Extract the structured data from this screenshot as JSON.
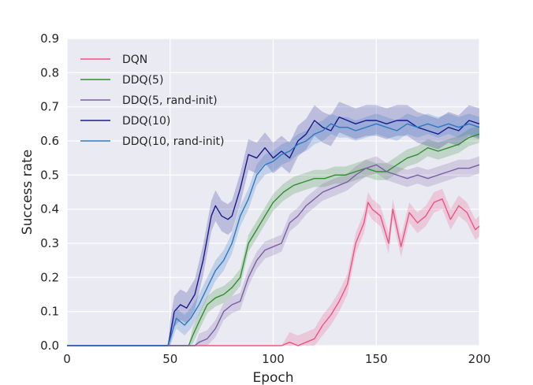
{
  "chart_data": {
    "type": "line",
    "xlabel": "Epoch",
    "ylabel": "Success rate",
    "xlim": [
      0,
      200
    ],
    "ylim": [
      0.0,
      0.9
    ],
    "xticks": [
      "0",
      "50",
      "100",
      "150",
      "200"
    ],
    "yticks": [
      "0.0",
      "0.1",
      "0.2",
      "0.3",
      "0.4",
      "0.5",
      "0.6",
      "0.7",
      "0.8",
      "0.9"
    ],
    "grid": true,
    "legend_position": "top-left",
    "series": [
      {
        "name": "DQN",
        "color": "#f0527f",
        "band_half_width": 0.03,
        "x": [
          0,
          100,
          104,
          108,
          112,
          116,
          120,
          124,
          128,
          132,
          136,
          140,
          144,
          146,
          148,
          152,
          156,
          158,
          162,
          166,
          170,
          174,
          178,
          182,
          186,
          190,
          194,
          198,
          200
        ],
        "y": [
          0,
          0,
          0.0,
          0.01,
          0.0,
          0.01,
          0.02,
          0.06,
          0.09,
          0.13,
          0.18,
          0.3,
          0.36,
          0.42,
          0.4,
          0.38,
          0.3,
          0.4,
          0.29,
          0.39,
          0.36,
          0.38,
          0.42,
          0.43,
          0.37,
          0.41,
          0.39,
          0.34,
          0.35
        ]
      },
      {
        "name": "DDQ(5)",
        "color": "#2f8f2f",
        "band_half_width": 0.025,
        "x": [
          0,
          59,
          61,
          64,
          68,
          72,
          76,
          80,
          84,
          88,
          92,
          96,
          100,
          105,
          110,
          115,
          120,
          125,
          130,
          135,
          140,
          145,
          150,
          155,
          160,
          165,
          170,
          175,
          180,
          185,
          190,
          195,
          200
        ],
        "y": [
          0,
          0,
          0.03,
          0.07,
          0.12,
          0.14,
          0.15,
          0.17,
          0.2,
          0.3,
          0.34,
          0.38,
          0.42,
          0.45,
          0.47,
          0.48,
          0.49,
          0.49,
          0.5,
          0.5,
          0.51,
          0.52,
          0.51,
          0.51,
          0.53,
          0.55,
          0.56,
          0.58,
          0.57,
          0.58,
          0.59,
          0.61,
          0.62
        ]
      },
      {
        "name": "DDQ(5, rand-init)",
        "color": "#7a5fa5",
        "band_half_width": 0.025,
        "x": [
          0,
          62,
          64,
          68,
          72,
          76,
          80,
          84,
          88,
          92,
          96,
          100,
          104,
          108,
          112,
          116,
          120,
          124,
          128,
          132,
          136,
          140,
          145,
          150,
          155,
          160,
          165,
          170,
          175,
          180,
          185,
          190,
          195,
          200
        ],
        "y": [
          0,
          0,
          0.01,
          0.02,
          0.05,
          0.1,
          0.12,
          0.13,
          0.2,
          0.25,
          0.28,
          0.29,
          0.3,
          0.36,
          0.38,
          0.41,
          0.43,
          0.45,
          0.46,
          0.47,
          0.48,
          0.5,
          0.52,
          0.53,
          0.51,
          0.5,
          0.49,
          0.5,
          0.49,
          0.5,
          0.51,
          0.52,
          0.52,
          0.53
        ]
      },
      {
        "name": "DDQ(10)",
        "color": "#1a1a90",
        "band_half_width": 0.045,
        "x": [
          0,
          49,
          50,
          52,
          55,
          58,
          62,
          66,
          70,
          72,
          75,
          78,
          80,
          84,
          88,
          92,
          96,
          100,
          104,
          108,
          112,
          116,
          120,
          124,
          128,
          132,
          136,
          140,
          145,
          150,
          155,
          160,
          165,
          170,
          175,
          180,
          185,
          190,
          195,
          200
        ],
        "y": [
          0,
          0,
          0.03,
          0.1,
          0.12,
          0.11,
          0.15,
          0.25,
          0.38,
          0.41,
          0.38,
          0.37,
          0.38,
          0.46,
          0.56,
          0.55,
          0.58,
          0.55,
          0.57,
          0.55,
          0.6,
          0.62,
          0.66,
          0.64,
          0.63,
          0.67,
          0.66,
          0.65,
          0.66,
          0.66,
          0.65,
          0.66,
          0.66,
          0.64,
          0.63,
          0.62,
          0.64,
          0.63,
          0.66,
          0.65
        ]
      },
      {
        "name": "DDQ(10, rand-init)",
        "color": "#2e78c2",
        "band_half_width": 0.03,
        "x": [
          0,
          49,
          50,
          53,
          57,
          60,
          64,
          68,
          72,
          76,
          80,
          84,
          88,
          92,
          96,
          100,
          104,
          108,
          112,
          116,
          120,
          124,
          128,
          132,
          136,
          140,
          145,
          150,
          155,
          160,
          165,
          170,
          175,
          180,
          185,
          190,
          195,
          200
        ],
        "y": [
          0,
          0,
          0.02,
          0.08,
          0.06,
          0.08,
          0.12,
          0.17,
          0.22,
          0.25,
          0.3,
          0.38,
          0.43,
          0.5,
          0.53,
          0.54,
          0.56,
          0.57,
          0.59,
          0.6,
          0.62,
          0.63,
          0.65,
          0.64,
          0.64,
          0.63,
          0.64,
          0.65,
          0.64,
          0.63,
          0.65,
          0.64,
          0.65,
          0.64,
          0.65,
          0.64,
          0.65,
          0.64
        ]
      }
    ]
  }
}
